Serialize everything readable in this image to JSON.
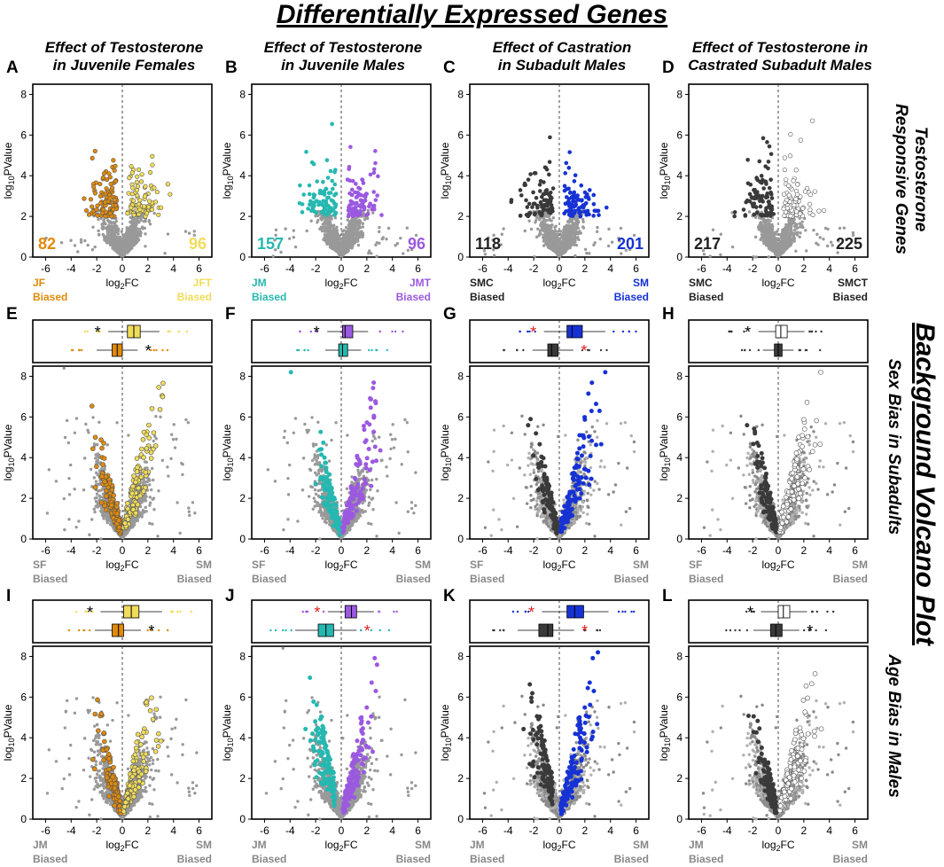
{
  "figure": {
    "title": "Differentially Expressed Genes",
    "column_titles": [
      [
        "Effect of Testosterone",
        "in Juvenile Females"
      ],
      [
        "Effect of Testosterone",
        "in Juvenile Males"
      ],
      [
        "Effect of Castration",
        "in Subadult Males"
      ],
      [
        "Effect of Testosterone in",
        "Castrated Subadult Males"
      ]
    ],
    "row_labels": [
      [
        "Testosterone",
        "Responsive Genes"
      ],
      [
        "Sex Bias in Subadults"
      ],
      [
        "Age Bias in Males"
      ]
    ],
    "background_title": "Background Volcano Plot"
  },
  "chart_data": [
    {
      "panel": "A",
      "type": "scatter",
      "xlabel": "log2FC",
      "ylabel": "log10PValue",
      "xlim": [
        -7,
        7
      ],
      "ylim": [
        0,
        8.5
      ],
      "xticks": [
        -6,
        -4,
        -2,
        0,
        2,
        4,
        6
      ],
      "yticks": [
        0,
        2,
        4,
        6,
        8
      ],
      "left_label": [
        "JF",
        "Biased"
      ],
      "right_label": [
        "JFT",
        "Biased"
      ],
      "left_count": "82",
      "right_count": "96",
      "left_color": "#e08a0b",
      "right_color": "#f0dc5a"
    },
    {
      "panel": "B",
      "type": "scatter",
      "xlabel": "log2FC",
      "ylabel": "log10PValue",
      "xlim": [
        -7,
        7
      ],
      "ylim": [
        0,
        8.5
      ],
      "xticks": [
        -6,
        -4,
        -2,
        0,
        2,
        4,
        6
      ],
      "yticks": [
        0,
        2,
        4,
        6,
        8
      ],
      "left_label": [
        "JM",
        "Biased"
      ],
      "right_label": [
        "JMT",
        "Biased"
      ],
      "left_count": "157",
      "right_count": "96",
      "left_color": "#26b8b0",
      "right_color": "#9b59e0"
    },
    {
      "panel": "C",
      "type": "scatter",
      "xlabel": "log2FC",
      "ylabel": "log10PValue",
      "xlim": [
        -7,
        7
      ],
      "ylim": [
        0,
        8.5
      ],
      "xticks": [
        -6,
        -4,
        -2,
        0,
        2,
        4,
        6
      ],
      "yticks": [
        0,
        2,
        4,
        6,
        8
      ],
      "left_label": [
        "SMC",
        "Biased"
      ],
      "right_label": [
        "SM",
        "Biased"
      ],
      "left_count": "118",
      "right_count": "201",
      "left_color": "#3a3a3a",
      "right_color": "#1632d4"
    },
    {
      "panel": "D",
      "type": "scatter",
      "xlabel": "log2FC",
      "ylabel": "log10PValue",
      "xlim": [
        -7,
        7
      ],
      "ylim": [
        0,
        8.5
      ],
      "xticks": [
        -6,
        -4,
        -2,
        0,
        2,
        4,
        6
      ],
      "yticks": [
        0,
        2,
        4,
        6,
        8
      ],
      "left_label": [
        "SMC",
        "Biased"
      ],
      "right_label": [
        "SMCT",
        "Biased"
      ],
      "left_count": "217",
      "right_count": "225",
      "left_color": "#3a3a3a",
      "right_color": "#ffffff"
    },
    {
      "panel": "E",
      "type": "scatter",
      "xlabel": "log2FC",
      "ylabel": "log10PValue",
      "xlim": [
        -7,
        7
      ],
      "ylim": [
        0,
        8.5
      ],
      "xticks": [
        -6,
        -4,
        -2,
        0,
        2,
        4,
        6
      ],
      "yticks": [
        0,
        2,
        4,
        6,
        8
      ],
      "left_label": [
        "SF",
        "Biased"
      ],
      "right_label": [
        "SM",
        "Biased"
      ],
      "box_top": {
        "median": 0.9,
        "q1": 0.4,
        "q3": 1.4,
        "color": "#f0dc5a"
      },
      "box_bottom": {
        "median": -0.4,
        "q1": -0.8,
        "q3": 0.0,
        "color": "#e08a0b"
      },
      "star_top": "*",
      "star_bottom": "*",
      "star_color": "black"
    },
    {
      "panel": "F",
      "type": "scatter",
      "xlabel": "log2FC",
      "ylabel": "log10PValue",
      "xlim": [
        -7,
        7
      ],
      "ylim": [
        0,
        8.5
      ],
      "xticks": [
        -6,
        -4,
        -2,
        0,
        2,
        4,
        6
      ],
      "yticks": [
        0,
        2,
        4,
        6,
        8
      ],
      "left_label": [
        "SF",
        "Biased"
      ],
      "right_label": [
        "SM",
        "Biased"
      ],
      "box_top": {
        "median": 0.3,
        "q1": 0.1,
        "q3": 0.9,
        "color": "#9b59e0"
      },
      "box_bottom": {
        "median": 0.1,
        "q1": -0.2,
        "q3": 0.5,
        "color": "#26b8b0"
      },
      "star_top": "*",
      "star_bottom": "",
      "star_color": "black"
    },
    {
      "panel": "G",
      "type": "scatter",
      "xlabel": "log2FC",
      "ylabel": "log10PValue",
      "xlim": [
        -7,
        7
      ],
      "ylim": [
        0,
        8.5
      ],
      "xticks": [
        -6,
        -4,
        -2,
        0,
        2,
        4,
        6
      ],
      "yticks": [
        0,
        2,
        4,
        6,
        8
      ],
      "left_label": [
        "SF",
        "Biased"
      ],
      "right_label": [
        "SM",
        "Biased"
      ],
      "box_top": {
        "median": 1.0,
        "q1": 0.6,
        "q3": 1.8,
        "color": "#1632d4"
      },
      "box_bottom": {
        "median": -0.6,
        "q1": -0.9,
        "q3": -0.1,
        "color": "#3a3a3a"
      },
      "star_top": "*",
      "star_bottom": "*",
      "star_color": "#e02020"
    },
    {
      "panel": "H",
      "type": "scatter",
      "xlabel": "log2FC",
      "ylabel": "log10PValue",
      "xlim": [
        -7,
        7
      ],
      "ylim": [
        0,
        8.5
      ],
      "xticks": [
        -6,
        -4,
        -2,
        0,
        2,
        4,
        6
      ],
      "yticks": [
        0,
        2,
        4,
        6,
        8
      ],
      "left_label": [
        "SF",
        "Biased"
      ],
      "right_label": [
        "SM",
        "Biased"
      ],
      "box_top": {
        "median": 0.2,
        "q1": -0.2,
        "q3": 0.7,
        "color": "#ffffff"
      },
      "box_bottom": {
        "median": 0.0,
        "q1": -0.3,
        "q3": 0.3,
        "color": "#3a3a3a"
      },
      "star_top": "*",
      "star_bottom": "",
      "star_color": "black"
    },
    {
      "panel": "I",
      "type": "scatter",
      "xlabel": "log2FC",
      "ylabel": "log10PValue",
      "xlim": [
        -7,
        7
      ],
      "ylim": [
        0,
        8.5
      ],
      "xticks": [
        -6,
        -4,
        -2,
        0,
        2,
        4,
        6
      ],
      "yticks": [
        0,
        2,
        4,
        6,
        8
      ],
      "left_label": [
        "JM",
        "Biased"
      ],
      "right_label": [
        "SM",
        "Biased"
      ],
      "box_top": {
        "median": 0.7,
        "q1": 0.1,
        "q3": 1.3,
        "color": "#f0dc5a"
      },
      "box_bottom": {
        "median": -0.3,
        "q1": -0.8,
        "q3": 0.1,
        "color": "#e08a0b"
      },
      "star_top": "*",
      "star_bottom": "*",
      "star_color": "black"
    },
    {
      "panel": "J",
      "type": "scatter",
      "xlabel": "log2FC",
      "ylabel": "log10PValue",
      "xlim": [
        -7,
        7
      ],
      "ylim": [
        0,
        8.5
      ],
      "xticks": [
        -6,
        -4,
        -2,
        0,
        2,
        4,
        6
      ],
      "yticks": [
        0,
        2,
        4,
        6,
        8
      ],
      "left_label": [
        "JM",
        "Biased"
      ],
      "right_label": [
        "SM",
        "Biased"
      ],
      "box_top": {
        "median": 0.8,
        "q1": 0.3,
        "q3": 1.2,
        "color": "#9b59e0"
      },
      "box_bottom": {
        "median": -1.2,
        "q1": -1.8,
        "q3": -0.6,
        "color": "#26b8b0"
      },
      "star_top": "*",
      "star_bottom": "*",
      "star_color": "#e02020"
    },
    {
      "panel": "K",
      "type": "scatter",
      "xlabel": "log2FC",
      "ylabel": "log10PValue",
      "xlim": [
        -7,
        7
      ],
      "ylim": [
        0,
        8.5
      ],
      "xticks": [
        -6,
        -4,
        -2,
        0,
        2,
        4,
        6
      ],
      "yticks": [
        0,
        2,
        4,
        6,
        8
      ],
      "left_label": [
        "JM",
        "Biased"
      ],
      "right_label": [
        "SM",
        "Biased"
      ],
      "box_top": {
        "median": 1.2,
        "q1": 0.6,
        "q3": 1.9,
        "color": "#1632d4"
      },
      "box_bottom": {
        "median": -0.9,
        "q1": -1.6,
        "q3": -0.5,
        "color": "#3a3a3a"
      },
      "star_top": "*",
      "star_bottom": "*",
      "star_color": "#e02020"
    },
    {
      "panel": "L",
      "type": "scatter",
      "xlabel": "log2FC",
      "ylabel": "log10PValue",
      "xlim": [
        -7,
        7
      ],
      "ylim": [
        0,
        8.5
      ],
      "xticks": [
        -6,
        -4,
        -2,
        0,
        2,
        4,
        6
      ],
      "yticks": [
        0,
        2,
        4,
        6,
        8
      ],
      "left_label": [
        "JM",
        "Biased"
      ],
      "right_label": [
        "SM",
        "Biased"
      ],
      "box_top": {
        "median": 0.4,
        "q1": 0.0,
        "q3": 0.9,
        "color": "#ffffff"
      },
      "box_bottom": {
        "median": -0.2,
        "q1": -0.6,
        "q3": 0.3,
        "color": "#3a3a3a"
      },
      "star_top": "*",
      "star_bottom": "*",
      "star_color": "black"
    }
  ]
}
